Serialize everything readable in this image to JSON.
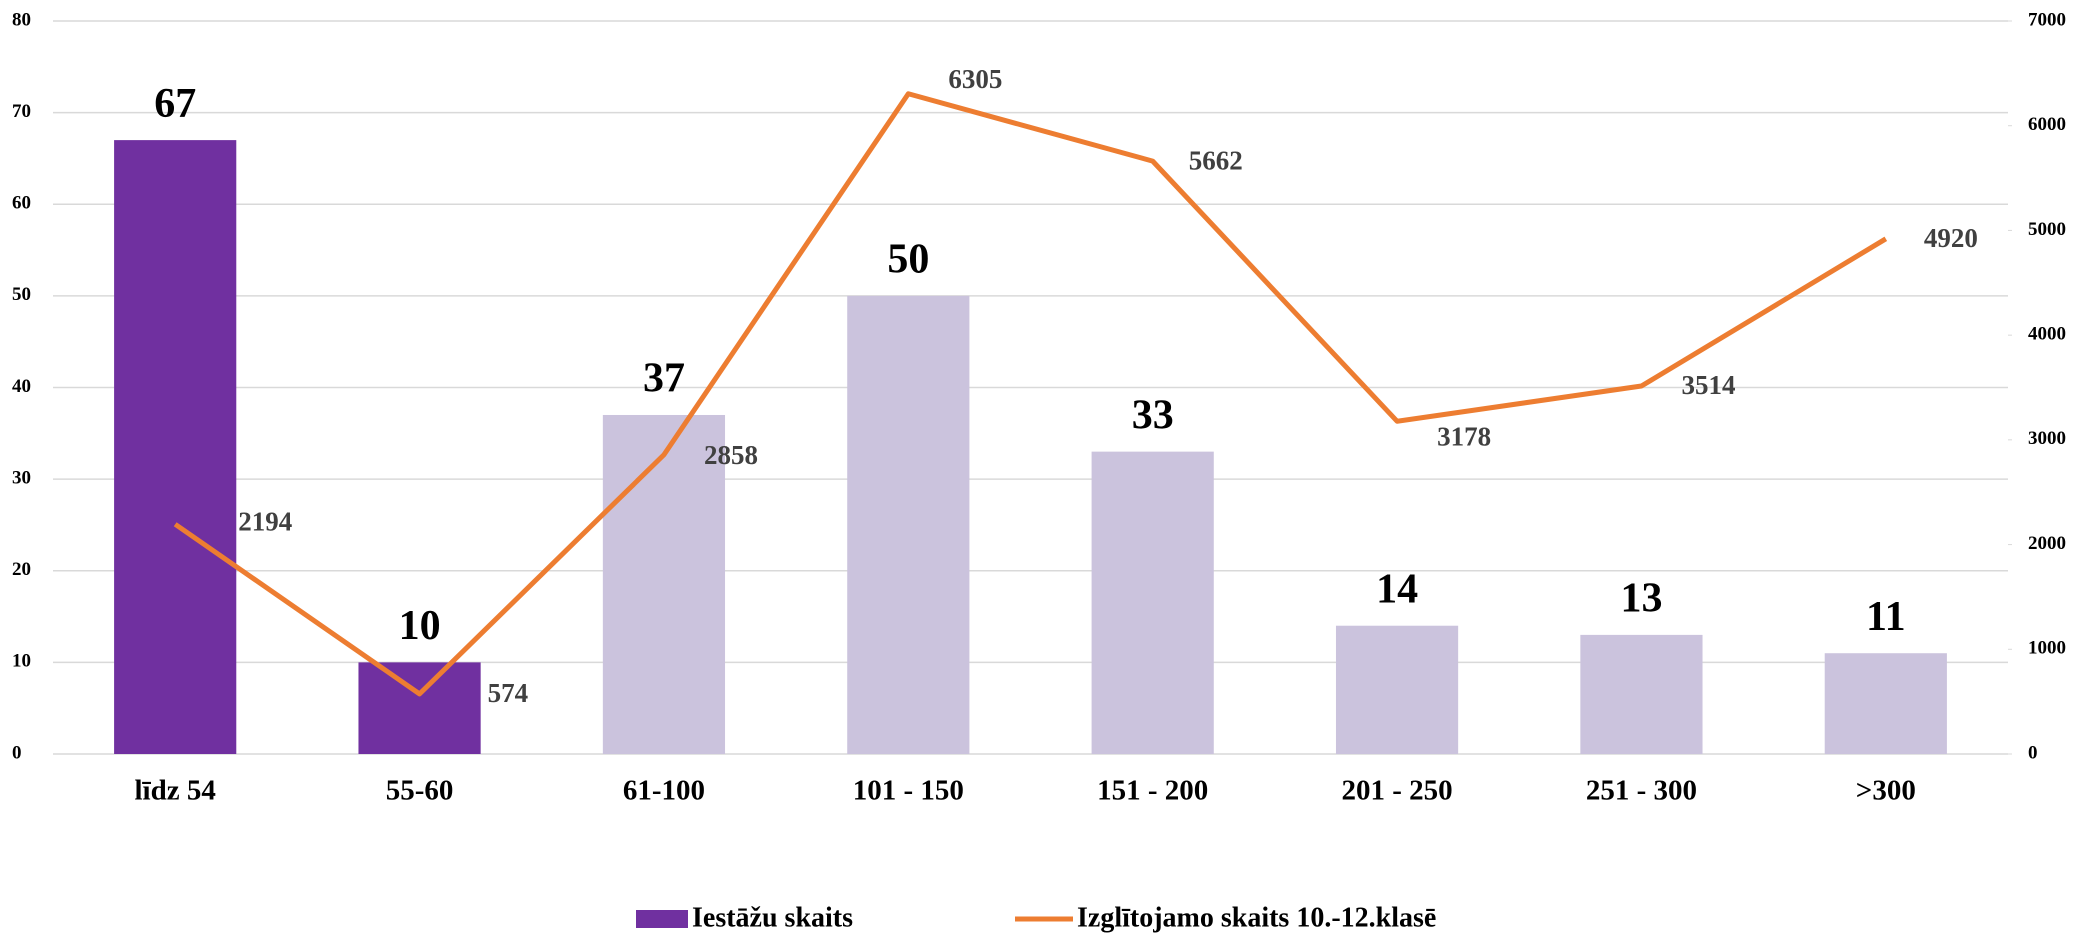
{
  "chart_data": {
    "type": "bar",
    "categories": [
      "līdz 54",
      "55-60",
      "61-100",
      "101 - 150",
      "151 - 200",
      "201 - 250",
      "251 - 300",
      ">300"
    ],
    "series": [
      {
        "name": "Iestāžu skaits",
        "type": "bar",
        "color": "#7030a0",
        "colors": [
          "#7030a0",
          "#7030a0",
          "#cbc3dd",
          "#cbc3dd",
          "#cbc3dd",
          "#cbc3dd",
          "#cbc3dd",
          "#cbc3dd"
        ],
        "values": [
          67,
          10,
          37,
          50,
          33,
          14,
          13,
          11
        ]
      },
      {
        "name": "Izglītojamo skaits 10.-12.klasē",
        "type": "line",
        "axis": "y2",
        "color": "#ed7d31",
        "values": [
          2194,
          574,
          2858,
          6305,
          5662,
          3178,
          3514,
          4920
        ]
      }
    ],
    "ylim": [
      0,
      80
    ],
    "yticks": [
      0,
      10,
      20,
      30,
      40,
      50,
      60,
      70,
      80
    ],
    "y2lim": [
      0,
      7000
    ],
    "y2ticks": [
      0,
      1000,
      2000,
      3000,
      4000,
      5000,
      6000,
      7000
    ],
    "grid": true,
    "legend": "bottom"
  }
}
